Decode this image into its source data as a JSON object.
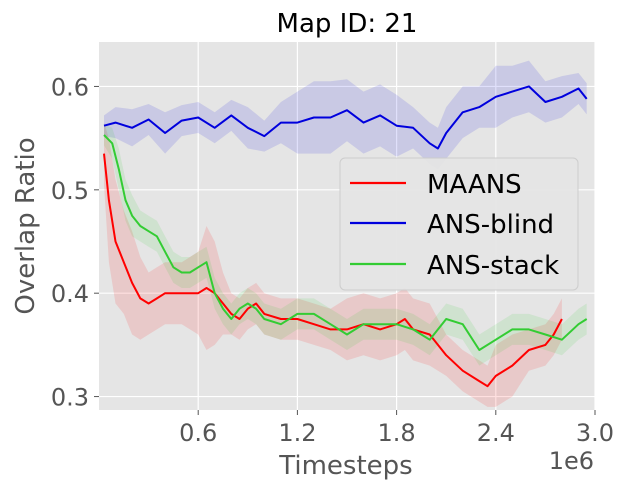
{
  "chart_data": {
    "type": "line",
    "title": "Map ID: 21",
    "xlabel": "Timesteps",
    "ylabel": "Overlap Ratio",
    "x_offset_label": "1e6",
    "xlim": [
      0.0,
      3.0
    ],
    "ylim": [
      0.287,
      0.643
    ],
    "xticks": [
      0.6,
      1.2,
      1.8,
      2.4,
      3.0
    ],
    "xtick_labels": [
      "0.6",
      "1.2",
      "1.8",
      "2.4",
      "3.0"
    ],
    "yticks": [
      0.3,
      0.4,
      0.5,
      0.6
    ],
    "ytick_labels": [
      "0.3",
      "0.4",
      "0.5",
      "0.6"
    ],
    "grid": true,
    "legend_position": "center-right",
    "series": [
      {
        "name": "MAANS",
        "color": "#ff0000",
        "x": [
          0.03,
          0.06,
          0.1,
          0.15,
          0.2,
          0.25,
          0.3,
          0.35,
          0.4,
          0.5,
          0.6,
          0.65,
          0.7,
          0.75,
          0.8,
          0.85,
          0.9,
          0.95,
          1.0,
          1.1,
          1.2,
          1.3,
          1.4,
          1.5,
          1.6,
          1.7,
          1.8,
          1.85,
          1.9,
          2.0,
          2.1,
          2.2,
          2.3,
          2.35,
          2.4,
          2.5,
          2.6,
          2.7,
          2.75,
          2.8
        ],
        "y": [
          0.535,
          0.49,
          0.45,
          0.43,
          0.41,
          0.395,
          0.39,
          0.395,
          0.4,
          0.4,
          0.4,
          0.405,
          0.4,
          0.39,
          0.38,
          0.375,
          0.385,
          0.39,
          0.38,
          0.375,
          0.375,
          0.37,
          0.365,
          0.365,
          0.37,
          0.365,
          0.37,
          0.375,
          0.365,
          0.36,
          0.34,
          0.325,
          0.315,
          0.31,
          0.32,
          0.33,
          0.345,
          0.35,
          0.36,
          0.375
        ],
        "band": [
          0.03,
          0.06,
          0.06,
          0.05,
          0.05,
          0.04,
          0.03,
          0.03,
          0.03,
          0.03,
          0.04,
          0.06,
          0.05,
          0.03,
          0.02,
          0.02,
          0.02,
          0.02,
          0.02,
          0.02,
          0.02,
          0.02,
          0.02,
          0.03,
          0.03,
          0.03,
          0.03,
          0.03,
          0.03,
          0.03,
          0.02,
          0.02,
          0.02,
          0.02,
          0.03,
          0.03,
          0.02,
          0.02,
          0.02,
          0.02
        ]
      },
      {
        "name": "ANS-blind",
        "color": "#0000dd",
        "x": [
          0.03,
          0.1,
          0.2,
          0.3,
          0.4,
          0.5,
          0.6,
          0.7,
          0.8,
          0.9,
          1.0,
          1.1,
          1.2,
          1.3,
          1.4,
          1.5,
          1.6,
          1.7,
          1.8,
          1.9,
          2.0,
          2.05,
          2.1,
          2.2,
          2.3,
          2.4,
          2.5,
          2.6,
          2.7,
          2.8,
          2.9,
          2.95
        ],
        "y": [
          0.562,
          0.565,
          0.56,
          0.568,
          0.555,
          0.567,
          0.57,
          0.56,
          0.572,
          0.56,
          0.552,
          0.565,
          0.565,
          0.57,
          0.57,
          0.577,
          0.565,
          0.572,
          0.562,
          0.56,
          0.545,
          0.54,
          0.555,
          0.575,
          0.58,
          0.59,
          0.595,
          0.6,
          0.585,
          0.59,
          0.598,
          0.588
        ],
        "band": [
          0.01,
          0.015,
          0.018,
          0.015,
          0.02,
          0.015,
          0.015,
          0.015,
          0.015,
          0.02,
          0.015,
          0.02,
          0.03,
          0.035,
          0.035,
          0.03,
          0.03,
          0.03,
          0.03,
          0.02,
          0.02,
          0.02,
          0.025,
          0.025,
          0.02,
          0.03,
          0.025,
          0.025,
          0.02,
          0.02,
          0.015,
          0.015
        ]
      },
      {
        "name": "ANS-stack",
        "color": "#33cc33",
        "x": [
          0.03,
          0.08,
          0.12,
          0.16,
          0.2,
          0.25,
          0.3,
          0.35,
          0.4,
          0.45,
          0.5,
          0.55,
          0.6,
          0.65,
          0.7,
          0.75,
          0.8,
          0.85,
          0.9,
          0.95,
          1.0,
          1.1,
          1.2,
          1.3,
          1.4,
          1.5,
          1.6,
          1.7,
          1.8,
          1.9,
          2.0,
          2.1,
          2.2,
          2.3,
          2.4,
          2.5,
          2.6,
          2.7,
          2.8,
          2.9,
          2.95
        ],
        "y": [
          0.553,
          0.545,
          0.52,
          0.49,
          0.475,
          0.465,
          0.46,
          0.455,
          0.44,
          0.425,
          0.42,
          0.42,
          0.425,
          0.43,
          0.4,
          0.385,
          0.375,
          0.385,
          0.39,
          0.385,
          0.375,
          0.37,
          0.38,
          0.38,
          0.37,
          0.36,
          0.37,
          0.37,
          0.37,
          0.365,
          0.355,
          0.375,
          0.37,
          0.345,
          0.355,
          0.365,
          0.365,
          0.36,
          0.355,
          0.37,
          0.375
        ],
        "band": [
          0.01,
          0.015,
          0.02,
          0.02,
          0.02,
          0.015,
          0.015,
          0.015,
          0.015,
          0.015,
          0.015,
          0.015,
          0.015,
          0.015,
          0.015,
          0.015,
          0.015,
          0.015,
          0.015,
          0.015,
          0.015,
          0.015,
          0.015,
          0.015,
          0.015,
          0.015,
          0.015,
          0.015,
          0.015,
          0.015,
          0.015,
          0.015,
          0.015,
          0.015,
          0.015,
          0.015,
          0.015,
          0.015,
          0.015,
          0.015,
          0.015
        ]
      }
    ]
  }
}
